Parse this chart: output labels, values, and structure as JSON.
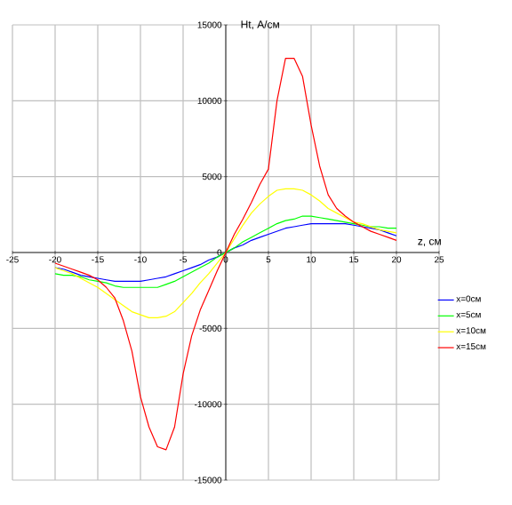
{
  "chart_data": {
    "type": "line",
    "xlabel": "z, см",
    "ylabel": "Ht, А/см",
    "x": [
      -20,
      -19,
      -18,
      -17,
      -16,
      -15,
      -14,
      -13,
      -12,
      -11,
      -10,
      -9,
      -8,
      -7,
      -6,
      -5,
      -4,
      -3,
      -2,
      -1,
      0,
      1,
      2,
      3,
      4,
      5,
      6,
      7,
      8,
      9,
      10,
      11,
      12,
      13,
      14,
      15,
      16,
      17,
      18,
      19,
      20
    ],
    "series": [
      {
        "name": "x=0см",
        "color": "#0000ff",
        "values": [
          -1000,
          -1100,
          -1300,
          -1500,
          -1600,
          -1700,
          -1800,
          -1900,
          -1900,
          -1900,
          -1900,
          -1800,
          -1700,
          -1600,
          -1400,
          -1200,
          -1000,
          -800,
          -500,
          -300,
          0,
          300,
          500,
          800,
          1000,
          1200,
          1400,
          1600,
          1700,
          1800,
          1900,
          1900,
          1900,
          1900,
          1900,
          1800,
          1700,
          1600,
          1500,
          1300,
          1100
        ]
      },
      {
        "name": "x=5см",
        "color": "#00ff00",
        "values": [
          -1400,
          -1500,
          -1500,
          -1600,
          -1800,
          -1900,
          -2000,
          -2200,
          -2300,
          -2300,
          -2300,
          -2300,
          -2300,
          -2100,
          -1900,
          -1600,
          -1300,
          -1000,
          -700,
          -300,
          0,
          300,
          700,
          1000,
          1300,
          1600,
          1900,
          2100,
          2200,
          2400,
          2400,
          2300,
          2200,
          2100,
          2000,
          1900,
          1800,
          1700,
          1700,
          1600,
          1600
        ]
      },
      {
        "name": "x=10см",
        "color": "#ffff00",
        "values": [
          -1000,
          -1200,
          -1400,
          -1700,
          -2000,
          -2300,
          -2700,
          -3100,
          -3500,
          -3900,
          -4100,
          -4300,
          -4300,
          -4200,
          -3900,
          -3300,
          -2700,
          -2000,
          -1400,
          -700,
          0,
          900,
          1800,
          2600,
          3200,
          3700,
          4100,
          4200,
          4200,
          4100,
          3800,
          3400,
          2900,
          2600,
          2300,
          2000,
          1900,
          1700,
          1500,
          1400,
          1300
        ]
      },
      {
        "name": "x=15см",
        "color": "#ff0000",
        "values": [
          -700,
          -900,
          -1100,
          -1300,
          -1500,
          -1800,
          -2300,
          -3000,
          -4500,
          -6500,
          -9500,
          -11500,
          -12800,
          -13000,
          -11500,
          -8000,
          -5500,
          -3800,
          -2500,
          -1200,
          0,
          1200,
          2200,
          3300,
          4500,
          5500,
          10000,
          12800,
          12800,
          11600,
          8400,
          5700,
          3800,
          2900,
          2400,
          2000,
          1700,
          1400,
          1200,
          1000,
          800
        ]
      }
    ],
    "xlim": [
      -25,
      25
    ],
    "ylim": [
      -15000,
      15000
    ],
    "xticks": [
      -25,
      -20,
      -15,
      -10,
      -5,
      0,
      5,
      10,
      15,
      20,
      25
    ],
    "yticks": [
      -15000,
      -10000,
      -5000,
      0,
      5000,
      10000,
      15000
    ],
    "grid": true,
    "legend": "right"
  }
}
